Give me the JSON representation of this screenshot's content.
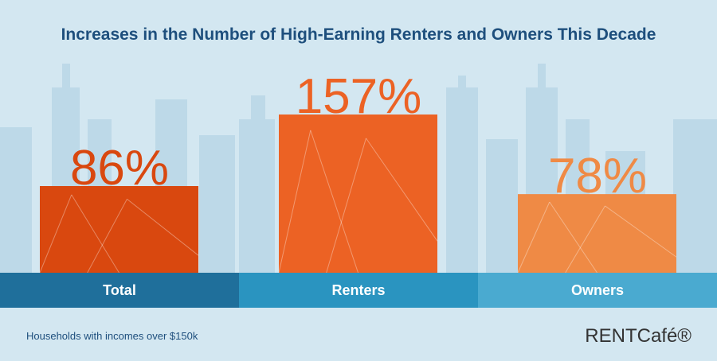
{
  "chart_data": {
    "type": "bar",
    "title": "Increases in the Number of High-Earning Renters and Owners This Decade",
    "categories": [
      "Total",
      "Renters",
      "Owners"
    ],
    "values": [
      86,
      157,
      78
    ],
    "value_labels": [
      "86%",
      "157%",
      "78%"
    ],
    "colors": [
      "#d9480f",
      "#ec6224",
      "#ef8a45"
    ],
    "band_colors": [
      "#1f6f9b",
      "#2a94c0",
      "#4aaad0"
    ],
    "footnote": "Households with incomes over $150k",
    "brand": "RENTCafé®"
  }
}
